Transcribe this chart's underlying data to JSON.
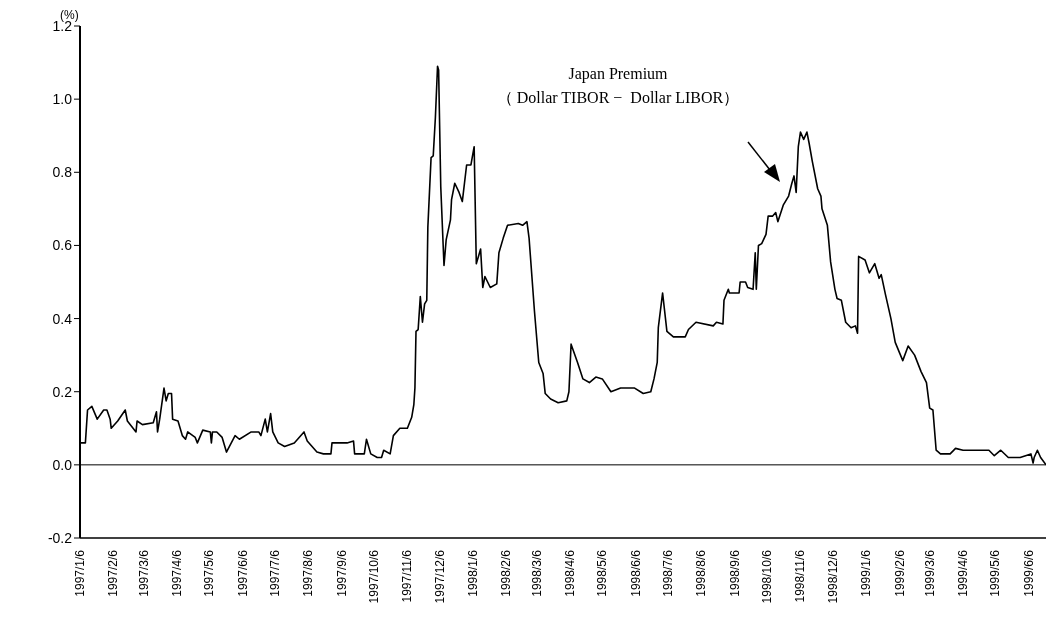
{
  "chart_data": {
    "type": "line",
    "ylabel": "(%)",
    "annotations": [
      "Japan Premium\n（ Dollar TIBOR −  Dollar LIBOR）"
    ],
    "xlim": [
      "1997-01-06",
      "1999-06-22"
    ],
    "xticks": [
      {
        "value": "1997-01-06",
        "label": "1997/1/6"
      },
      {
        "value": "1997-02-06",
        "label": "1997/2/6"
      },
      {
        "value": "1997-03-06",
        "label": "1997/3/6"
      },
      {
        "value": "1997-04-06",
        "label": "1997/4/6"
      },
      {
        "value": "1997-05-06",
        "label": "1997/5/6"
      },
      {
        "value": "1997-06-06",
        "label": "1997/6/6"
      },
      {
        "value": "1997-07-06",
        "label": "1997/7/6"
      },
      {
        "value": "1997-08-06",
        "label": "1997/8/6"
      },
      {
        "value": "1997-09-06",
        "label": "1997/9/6"
      },
      {
        "value": "1997-10-06",
        "label": "1997/10/6"
      },
      {
        "value": "1997-11-06",
        "label": "1997/11/6"
      },
      {
        "value": "1997-12-06",
        "label": "1997/12/6"
      },
      {
        "value": "1998-01-06",
        "label": "1998/1/6"
      },
      {
        "value": "1998-02-06",
        "label": "1998/2/6"
      },
      {
        "value": "1998-03-06",
        "label": "1998/3/6"
      },
      {
        "value": "1998-04-06",
        "label": "1998/4/6"
      },
      {
        "value": "1998-05-06",
        "label": "1998/5/6"
      },
      {
        "value": "1998-06-06",
        "label": "1998/6/6"
      },
      {
        "value": "1998-07-06",
        "label": "1998/7/6"
      },
      {
        "value": "1998-08-06",
        "label": "1998/8/6"
      },
      {
        "value": "1998-09-06",
        "label": "1998/9/6"
      },
      {
        "value": "1998-10-06",
        "label": "1998/10/6"
      },
      {
        "value": "1998-11-06",
        "label": "1998/11/6"
      },
      {
        "value": "1998-12-06",
        "label": "1998/12/6"
      },
      {
        "value": "1999-01-06",
        "label": "1999/1/6"
      },
      {
        "value": "1999-02-06",
        "label": "1999/2/6"
      },
      {
        "value": "1999-03-06",
        "label": "1999/3/6"
      },
      {
        "value": "1999-04-06",
        "label": "1999/4/6"
      },
      {
        "value": "1999-05-06",
        "label": "1999/5/6"
      },
      {
        "value": "1999-06-06",
        "label": "1999/6/6"
      }
    ],
    "ylim": [
      -0.2,
      1.2
    ],
    "yticks": [
      {
        "value": -0.2,
        "label": "-0.2"
      },
      {
        "value": 0,
        "label": "0.0"
      },
      {
        "value": 0.2,
        "label": "0.2"
      },
      {
        "value": 0.4,
        "label": "0.4"
      },
      {
        "value": 0.6,
        "label": "0.6"
      },
      {
        "value": 0.8,
        "label": "0.8"
      },
      {
        "value": 1,
        "label": "1.0"
      },
      {
        "value": 1.2,
        "label": "1.2"
      }
    ],
    "ref_lines": [
      {
        "axis": "y",
        "value": 0,
        "color": "#000000"
      }
    ],
    "grid": false,
    "legend": false,
    "series": [
      {
        "color": "#000000",
        "x": [
          "1997-01-06",
          "1997-01-11",
          "1997-01-13",
          "1997-01-17",
          "1997-01-22",
          "1997-01-28",
          "1997-01-31",
          "1997-02-03",
          "1997-02-04",
          "1997-02-10",
          "1997-02-17",
          "1997-02-19",
          "1997-02-27",
          "1997-02-28",
          "1997-03-05",
          "1997-03-15",
          "1997-03-18",
          "1997-03-19",
          "1997-03-21",
          "1997-03-25",
          "1997-03-27",
          "1997-03-29",
          "1997-04-01",
          "1997-04-02",
          "1997-04-07",
          "1997-04-11",
          "1997-04-14",
          "1997-04-16",
          "1997-04-23",
          "1997-04-25",
          "1997-04-30",
          "1997-05-07",
          "1997-05-08",
          "1997-05-09",
          "1997-05-13",
          "1997-05-18",
          "1997-05-22",
          "1997-05-30",
          "1997-06-03",
          "1997-06-14",
          "1997-06-21",
          "1997-06-23",
          "1997-06-27",
          "1997-06-29",
          "1997-07-02",
          "1997-07-04",
          "1997-07-09",
          "1997-07-15",
          "1997-07-24",
          "1997-08-02",
          "1997-08-05",
          "1997-08-14",
          "1997-08-20",
          "1997-08-27",
          "1997-08-28",
          "1997-09-11",
          "1997-09-17",
          "1997-09-18",
          "1997-09-27",
          "1997-09-29",
          "1997-10-03",
          "1997-10-09",
          "1997-10-13",
          "1997-10-15",
          "1997-10-21",
          "1997-10-24",
          "1997-10-30",
          "1997-11-06",
          "1997-11-10",
          "1997-11-12",
          "1997-11-13",
          "1997-11-14",
          "1997-11-16",
          "1997-11-18",
          "1997-11-20",
          "1997-11-22",
          "1997-11-24",
          "1997-11-25",
          "1997-11-28",
          "1997-11-30",
          "1997-12-02",
          "1997-12-04",
          "1997-12-05",
          "1997-12-07",
          "1997-12-10",
          "1997-12-12",
          "1997-12-16",
          "1997-12-17",
          "1997-12-20",
          "1997-12-24",
          "1997-12-27",
          "1997-12-31",
          "1998-01-04",
          "1998-01-07",
          "1998-01-09",
          "1998-01-13",
          "1998-01-15",
          "1998-01-17",
          "1998-01-22",
          "1998-01-28",
          "1998-01-30",
          "1998-02-03",
          "1998-02-07",
          "1998-02-17",
          "1998-02-21",
          "1998-02-25",
          "1998-02-27",
          "1998-03-04",
          "1998-03-08",
          "1998-03-12",
          "1998-03-14",
          "1998-03-19",
          "1998-03-26",
          "1998-04-03",
          "1998-04-05",
          "1998-04-07",
          "1998-04-13",
          "1998-04-18",
          "1998-04-24",
          "1998-04-30",
          "1998-05-06",
          "1998-05-14",
          "1998-05-23",
          "1998-05-30",
          "1998-06-05",
          "1998-06-13",
          "1998-06-20",
          "1998-06-23",
          "1998-06-26",
          "1998-06-27",
          "1998-07-01",
          "1998-07-05",
          "1998-07-11",
          "1998-07-22",
          "1998-07-25",
          "1998-08-01",
          "1998-08-17",
          "1998-08-20",
          "1998-08-26",
          "1998-08-27",
          "1998-08-31",
          "1998-09-01",
          "1998-09-10",
          "1998-09-11",
          "1998-09-16",
          "1998-09-18",
          "1998-09-23",
          "1998-09-25",
          "1998-09-26",
          "1998-09-28",
          "1998-10-01",
          "1998-10-05",
          "1998-10-07",
          "1998-10-11",
          "1998-10-14",
          "1998-10-16",
          "1998-10-21",
          "1998-10-26",
          "1998-10-29",
          "1998-10-31",
          "1998-11-02",
          "1998-11-04",
          "1998-11-06",
          "1998-11-09",
          "1998-11-12",
          "1998-11-14",
          "1998-11-17",
          "1998-11-22",
          "1998-11-25",
          "1998-11-26",
          "1998-12-01",
          "1998-12-04",
          "1998-12-08",
          "1998-12-10",
          "1998-12-14",
          "1998-12-18",
          "1998-12-23",
          "1998-12-27",
          "1998-12-29",
          "1998-12-30",
          "1999-01-05",
          "1999-01-09",
          "1999-01-14",
          "1999-01-18",
          "1999-01-20",
          "1999-01-24",
          "1999-01-29",
          "1999-02-02",
          "1999-02-09",
          "1999-02-14",
          "1999-02-20",
          "1999-02-26",
          "1999-03-03",
          "1999-03-06",
          "1999-03-09",
          "1999-03-12",
          "1999-03-16",
          "1999-03-25",
          "1999-03-30",
          "1999-04-06",
          "1999-04-15",
          "1999-04-30",
          "1999-05-05",
          "1999-05-11",
          "1999-05-18",
          "1999-05-29",
          "1999-06-08",
          "1999-06-10",
          "1999-06-11",
          "1999-06-14",
          "1999-06-17",
          "1999-06-22"
        ],
        "values": [
          0.06,
          0.06,
          0.15,
          0.16,
          0.125,
          0.15,
          0.15,
          0.125,
          0.1,
          0.12,
          0.15,
          0.12,
          0.09,
          0.12,
          0.11,
          0.115,
          0.145,
          0.09,
          0.125,
          0.21,
          0.175,
          0.195,
          0.195,
          0.125,
          0.12,
          0.08,
          0.07,
          0.09,
          0.075,
          0.06,
          0.095,
          0.09,
          0.06,
          0.09,
          0.09,
          0.075,
          0.035,
          0.08,
          0.07,
          0.09,
          0.09,
          0.08,
          0.125,
          0.09,
          0.14,
          0.09,
          0.06,
          0.05,
          0.06,
          0.09,
          0.065,
          0.035,
          0.03,
          0.03,
          0.06,
          0.06,
          0.065,
          0.03,
          0.03,
          0.07,
          0.03,
          0.02,
          0.02,
          0.04,
          0.03,
          0.08,
          0.1,
          0.1,
          0.13,
          0.165,
          0.21,
          0.365,
          0.37,
          0.46,
          0.39,
          0.44,
          0.45,
          0.65,
          0.84,
          0.845,
          0.95,
          1.09,
          1.08,
          0.76,
          0.545,
          0.615,
          0.67,
          0.725,
          0.77,
          0.745,
          0.72,
          0.82,
          0.82,
          0.87,
          0.55,
          0.59,
          0.485,
          0.515,
          0.485,
          0.495,
          0.58,
          0.62,
          0.655,
          0.66,
          0.655,
          0.665,
          0.62,
          0.42,
          0.28,
          0.25,
          0.195,
          0.18,
          0.17,
          0.175,
          0.2,
          0.33,
          0.28,
          0.235,
          0.225,
          0.24,
          0.235,
          0.2,
          0.21,
          0.21,
          0.21,
          0.195,
          0.2,
          0.235,
          0.28,
          0.375,
          0.47,
          0.365,
          0.35,
          0.35,
          0.37,
          0.39,
          0.38,
          0.39,
          0.385,
          0.45,
          0.48,
          0.47,
          0.47,
          0.5,
          0.5,
          0.485,
          0.48,
          0.58,
          0.48,
          0.6,
          0.605,
          0.63,
          0.68,
          0.68,
          0.69,
          0.665,
          0.71,
          0.735,
          0.77,
          0.79,
          0.745,
          0.87,
          0.91,
          0.89,
          0.91,
          0.88,
          0.83,
          0.755,
          0.735,
          0.7,
          0.655,
          0.555,
          0.48,
          0.455,
          0.45,
          0.39,
          0.375,
          0.38,
          0.36,
          0.57,
          0.56,
          0.525,
          0.55,
          0.51,
          0.52,
          0.465,
          0.4,
          0.335,
          0.285,
          0.325,
          0.3,
          0.255,
          0.225,
          0.155,
          0.15,
          0.04,
          0.03,
          0.03,
          0.045,
          0.04,
          0.04,
          0.04,
          0.025,
          0.04,
          0.02,
          0.02,
          0.03,
          0.005,
          0.02,
          0.04,
          0.02,
          0.0
        ]
      }
    ]
  }
}
